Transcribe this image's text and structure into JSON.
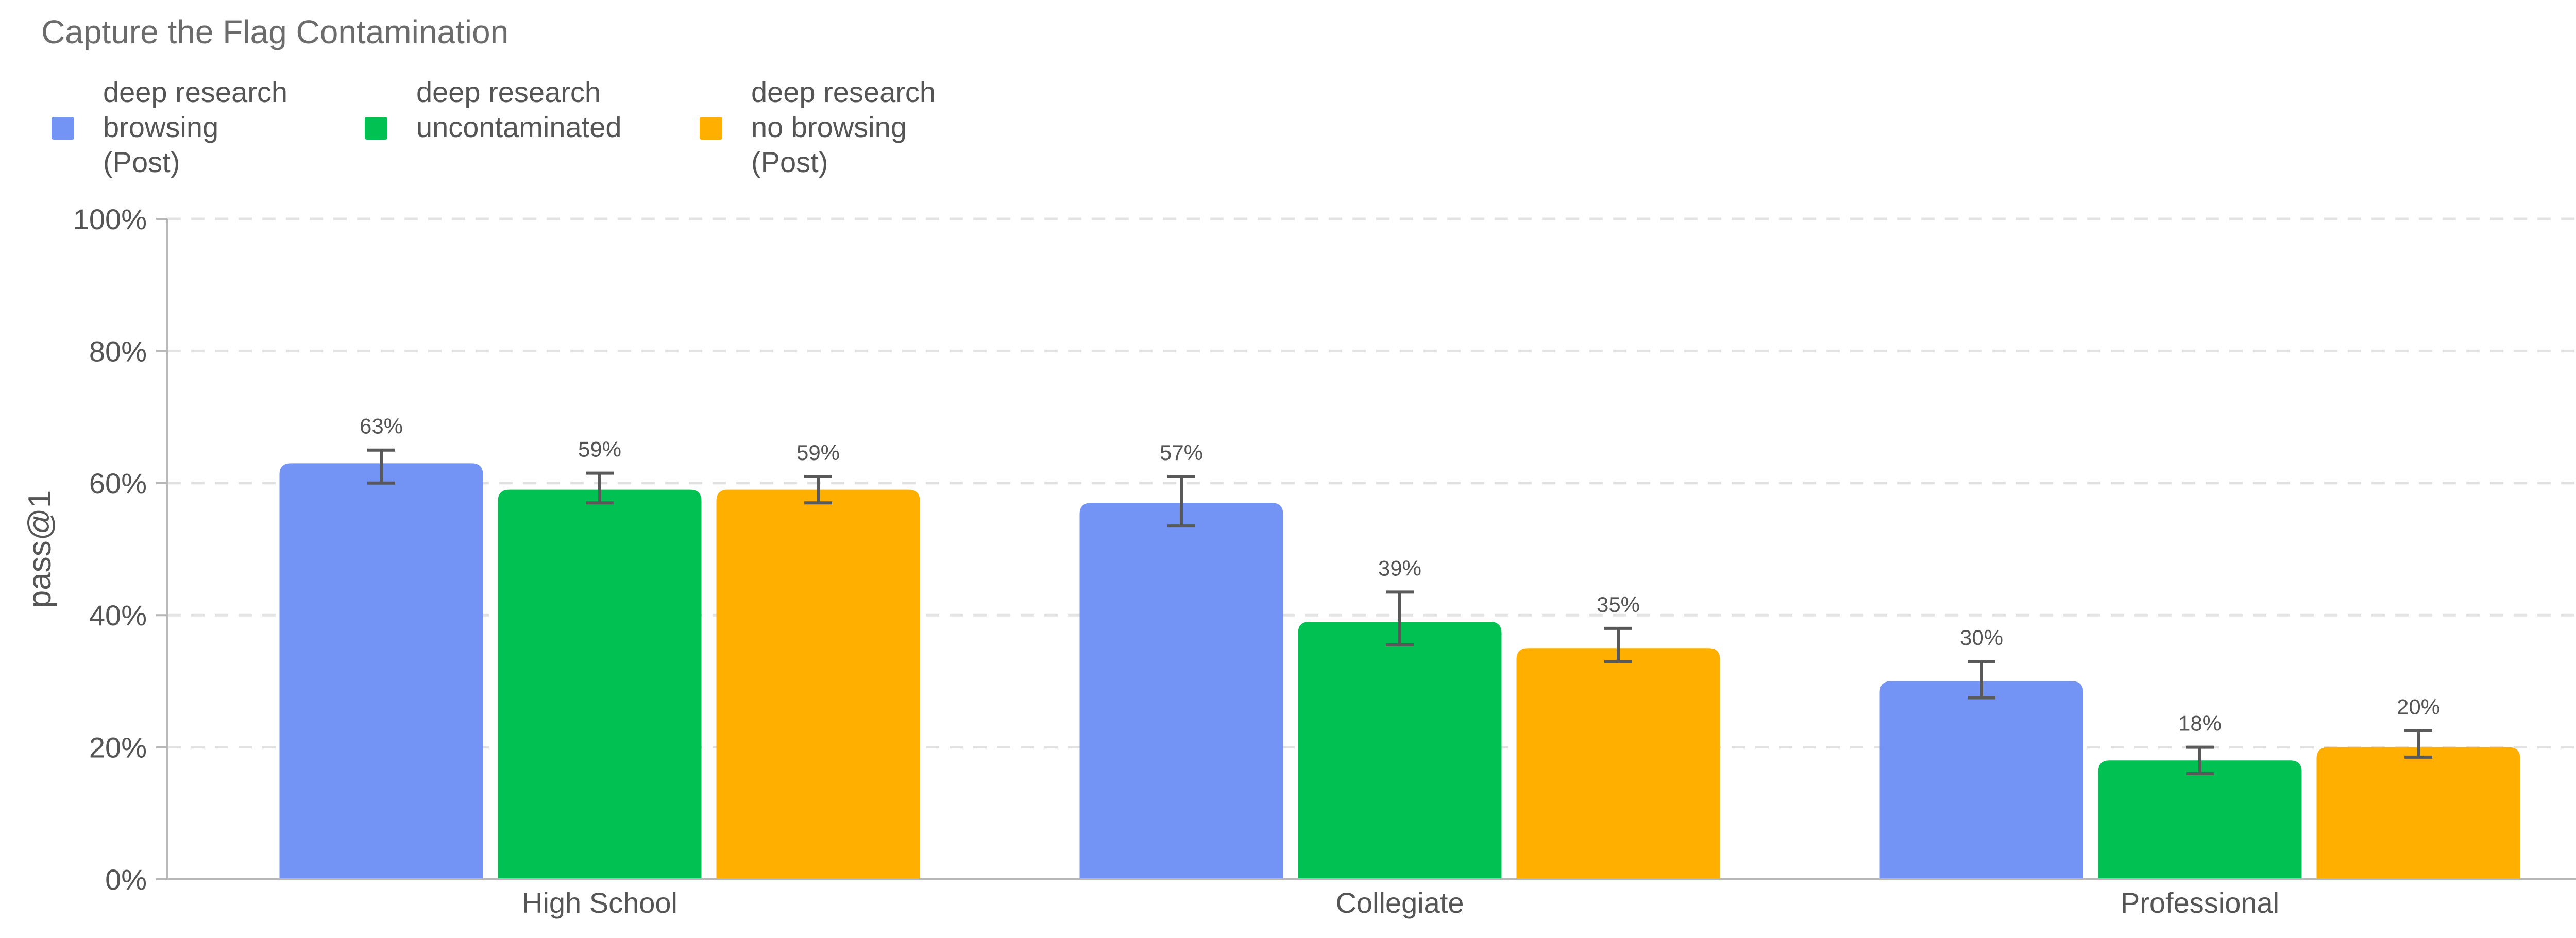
{
  "chart_data": {
    "type": "bar",
    "title": "Capture the Flag Contamination",
    "ylabel": "pass@1",
    "xlabel": "",
    "ylim": [
      0,
      100
    ],
    "y_ticks": [
      0,
      20,
      40,
      60,
      80,
      100
    ],
    "y_tick_labels": [
      "0%",
      "20%",
      "40%",
      "60%",
      "80%",
      "100%"
    ],
    "grid": "horizontal dashed",
    "legend_position": "top-left",
    "categories": [
      "High School",
      "Collegiate",
      "Professional"
    ],
    "series": [
      {
        "name": "deep research\nbrowsing\n(Post)",
        "color": "#7393F5",
        "values": [
          63,
          57,
          30
        ],
        "value_labels": [
          "63%",
          "57%",
          "30%"
        ],
        "error_low": [
          60,
          53.5,
          27.5
        ],
        "error_high": [
          65,
          61,
          33
        ]
      },
      {
        "name": "deep research\nuncontaminated",
        "color": "#02C153",
        "values": [
          59,
          39,
          18
        ],
        "value_labels": [
          "59%",
          "39%",
          "18%"
        ],
        "error_low": [
          57,
          35.5,
          16
        ],
        "error_high": [
          61.5,
          43.5,
          20
        ]
      },
      {
        "name": "deep research\nno browsing\n(Post)",
        "color": "#FFAF00",
        "values": [
          59,
          35,
          20
        ],
        "value_labels": [
          "59%",
          "35%",
          "20%"
        ],
        "error_low": [
          57,
          33,
          18.5
        ],
        "error_high": [
          61,
          38,
          22.5
        ]
      }
    ]
  }
}
